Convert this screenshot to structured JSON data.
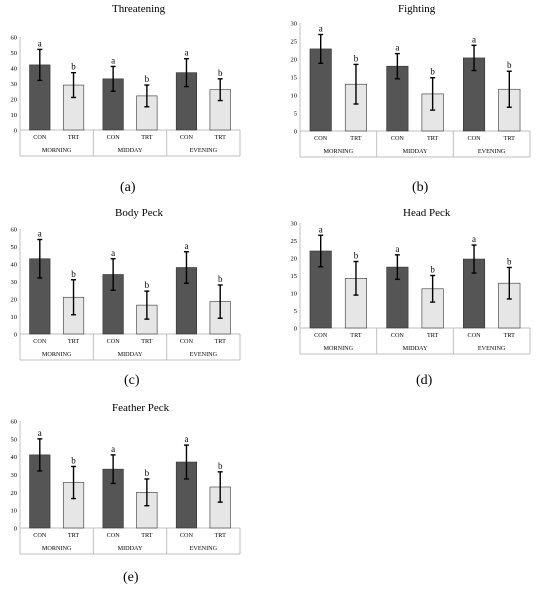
{
  "colors": {
    "con": "#555555",
    "trt": "#e6e6e6",
    "axis": "#bfbfbf",
    "bar_stroke": "#333333",
    "error": "#000000"
  },
  "chart_data": [
    {
      "type": "bar",
      "label": "(a)",
      "title": "Threatening",
      "groups": [
        "MORNING",
        "MIDDAY",
        "EVENING"
      ],
      "bar_labels": [
        "CON",
        "TRT"
      ],
      "ylim": [
        0,
        60
      ],
      "yticks": [
        0,
        10,
        20,
        30,
        40,
        50,
        60
      ],
      "bars": [
        {
          "group": "MORNING",
          "bar": "CON",
          "value": 42,
          "err": 10,
          "letter": "a"
        },
        {
          "group": "MORNING",
          "bar": "TRT",
          "value": 29,
          "err": 8,
          "letter": "b"
        },
        {
          "group": "MIDDAY",
          "bar": "CON",
          "value": 33,
          "err": 8,
          "letter": "a"
        },
        {
          "group": "MIDDAY",
          "bar": "TRT",
          "value": 22,
          "err": 7,
          "letter": "b"
        },
        {
          "group": "EVENING",
          "bar": "CON",
          "value": 37,
          "err": 9,
          "letter": "a"
        },
        {
          "group": "EVENING",
          "bar": "TRT",
          "value": 26,
          "err": 7,
          "letter": "b"
        }
      ]
    },
    {
      "type": "bar",
      "label": "(b)",
      "title": "Fighting",
      "groups": [
        "MORNING",
        "MIDDAY",
        "EVENING"
      ],
      "bar_labels": [
        "CON",
        "TRT"
      ],
      "ylim": [
        0,
        30
      ],
      "yticks": [
        0,
        5,
        10,
        15,
        20,
        25,
        30
      ],
      "bars": [
        {
          "group": "MORNING",
          "bar": "CON",
          "value": 22.8,
          "err": 4,
          "letter": "a"
        },
        {
          "group": "MORNING",
          "bar": "TRT",
          "value": 13,
          "err": 5.5,
          "letter": "b"
        },
        {
          "group": "MIDDAY",
          "bar": "CON",
          "value": 18,
          "err": 3.5,
          "letter": "a"
        },
        {
          "group": "MIDDAY",
          "bar": "TRT",
          "value": 10.3,
          "err": 4.5,
          "letter": "b"
        },
        {
          "group": "EVENING",
          "bar": "CON",
          "value": 20.3,
          "err": 3.5,
          "letter": "a"
        },
        {
          "group": "EVENING",
          "bar": "TRT",
          "value": 11.6,
          "err": 5,
          "letter": "b"
        }
      ]
    },
    {
      "type": "bar",
      "label": "(c)",
      "title": "Body Peck",
      "groups": [
        "MORNING",
        "MIDDAY",
        "EVENING"
      ],
      "bar_labels": [
        "CON",
        "TRT"
      ],
      "ylim": [
        0,
        60
      ],
      "yticks": [
        0,
        10,
        20,
        30,
        40,
        50,
        60
      ],
      "bars": [
        {
          "group": "MORNING",
          "bar": "CON",
          "value": 43,
          "err": 11,
          "letter": "a"
        },
        {
          "group": "MORNING",
          "bar": "TRT",
          "value": 21,
          "err": 10,
          "letter": "b"
        },
        {
          "group": "MIDDAY",
          "bar": "CON",
          "value": 34,
          "err": 9,
          "letter": "a"
        },
        {
          "group": "MIDDAY",
          "bar": "TRT",
          "value": 16.5,
          "err": 8,
          "letter": "b"
        },
        {
          "group": "EVENING",
          "bar": "CON",
          "value": 38,
          "err": 9,
          "letter": "a"
        },
        {
          "group": "EVENING",
          "bar": "TRT",
          "value": 18.5,
          "err": 9.5,
          "letter": "b"
        }
      ]
    },
    {
      "type": "bar",
      "label": "(d)",
      "title": "Head Peck",
      "groups": [
        "MORNING",
        "MIDDAY",
        "EVENING"
      ],
      "bar_labels": [
        "CON",
        "TRT"
      ],
      "ylim": [
        0,
        30
      ],
      "yticks": [
        0,
        5,
        10,
        15,
        20,
        25,
        30
      ],
      "bars": [
        {
          "group": "MORNING",
          "bar": "CON",
          "value": 22,
          "err": 4.5,
          "letter": "a"
        },
        {
          "group": "MORNING",
          "bar": "TRT",
          "value": 14.2,
          "err": 4.8,
          "letter": "b"
        },
        {
          "group": "MIDDAY",
          "bar": "CON",
          "value": 17.4,
          "err": 3.5,
          "letter": "a"
        },
        {
          "group": "MIDDAY",
          "bar": "TRT",
          "value": 11.2,
          "err": 3.8,
          "letter": "b"
        },
        {
          "group": "EVENING",
          "bar": "CON",
          "value": 19.7,
          "err": 4,
          "letter": "a"
        },
        {
          "group": "EVENING",
          "bar": "TRT",
          "value": 12.8,
          "err": 4.5,
          "letter": "b"
        }
      ]
    },
    {
      "type": "bar",
      "label": "(e)",
      "title": "Feather Peck",
      "groups": [
        "MORNING",
        "MIDDAY",
        "EVENING"
      ],
      "bar_labels": [
        "CON",
        "TRT"
      ],
      "ylim": [
        0,
        60
      ],
      "yticks": [
        0,
        10,
        20,
        30,
        40,
        50,
        60
      ],
      "bars": [
        {
          "group": "MORNING",
          "bar": "CON",
          "value": 41,
          "err": 9,
          "letter": "a"
        },
        {
          "group": "MORNING",
          "bar": "TRT",
          "value": 25.5,
          "err": 9,
          "letter": "b"
        },
        {
          "group": "MIDDAY",
          "bar": "CON",
          "value": 33,
          "err": 8,
          "letter": "a"
        },
        {
          "group": "MIDDAY",
          "bar": "TRT",
          "value": 20,
          "err": 7.5,
          "letter": "b"
        },
        {
          "group": "EVENING",
          "bar": "CON",
          "value": 37,
          "err": 9.5,
          "letter": "a"
        },
        {
          "group": "EVENING",
          "bar": "TRT",
          "value": 23,
          "err": 8.5,
          "letter": "b"
        }
      ]
    }
  ]
}
